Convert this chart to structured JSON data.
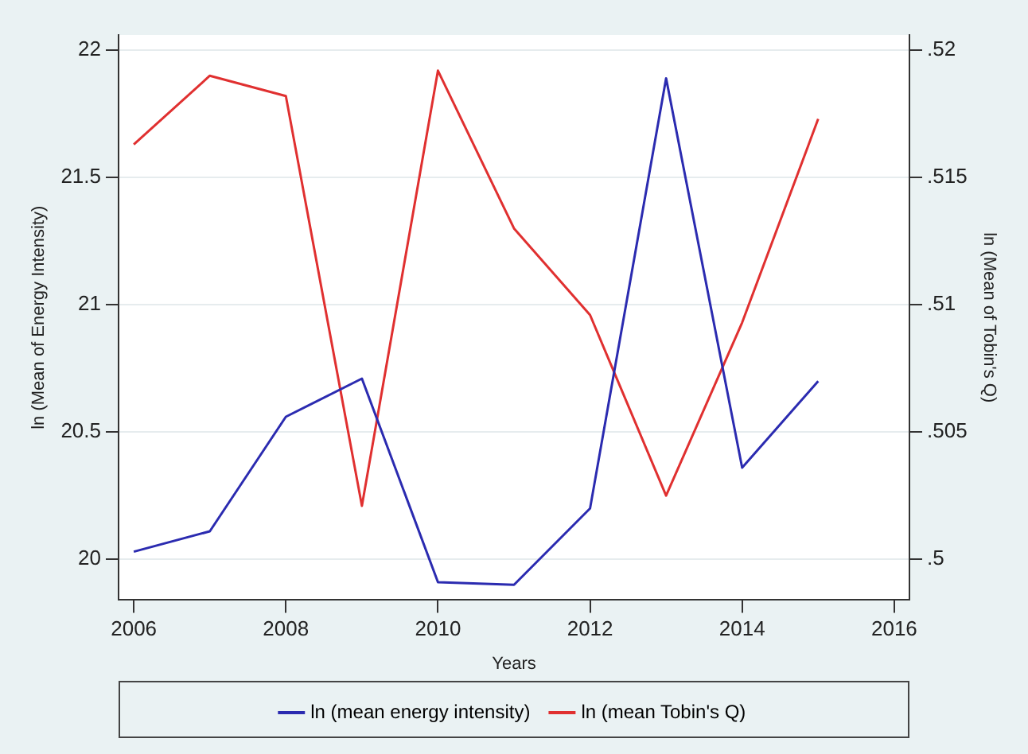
{
  "chart_data": {
    "type": "line",
    "xlabel": "Years",
    "ylabel": "ln (Mean of Energy Intensity)",
    "y2label": "ln (Mean of Tobin's Q)",
    "x": [
      2006,
      2007,
      2008,
      2009,
      2010,
      2011,
      2012,
      2013,
      2014,
      2015
    ],
    "series": [
      {
        "name": "ln (mean energy intensity)",
        "color": "#2b2bb0",
        "values": [
          20.03,
          20.11,
          20.56,
          20.71,
          19.91,
          19.9,
          20.2,
          21.89,
          20.36,
          20.7
        ]
      },
      {
        "name": "ln (mean Tobin's Q)",
        "color": "#e03030",
        "axis": "y2",
        "values": [
          0.5163,
          0.519,
          0.5182,
          0.5021,
          0.5192,
          0.513,
          0.5096,
          0.5025,
          0.5093,
          0.5173
        ]
      }
    ],
    "xlim": [
      2005.8,
      2016.2
    ],
    "xticks": [
      2006,
      2008,
      2010,
      2012,
      2014,
      2016
    ],
    "ylim": [
      19.84,
      22.06
    ],
    "yticks": [
      20,
      20.5,
      21,
      21.5,
      22
    ],
    "y2lim": [
      0.4984,
      0.5206
    ],
    "y2ticks": [
      {
        "value": 0.5,
        "label": ".5"
      },
      {
        "value": 0.505,
        "label": ".505"
      },
      {
        "value": 0.51,
        "label": ".51"
      },
      {
        "value": 0.515,
        "label": ".515"
      },
      {
        "value": 0.52,
        "label": ".52"
      }
    ],
    "grid": "y",
    "legend": "bottom",
    "marker": "none",
    "line_style": "solid"
  }
}
